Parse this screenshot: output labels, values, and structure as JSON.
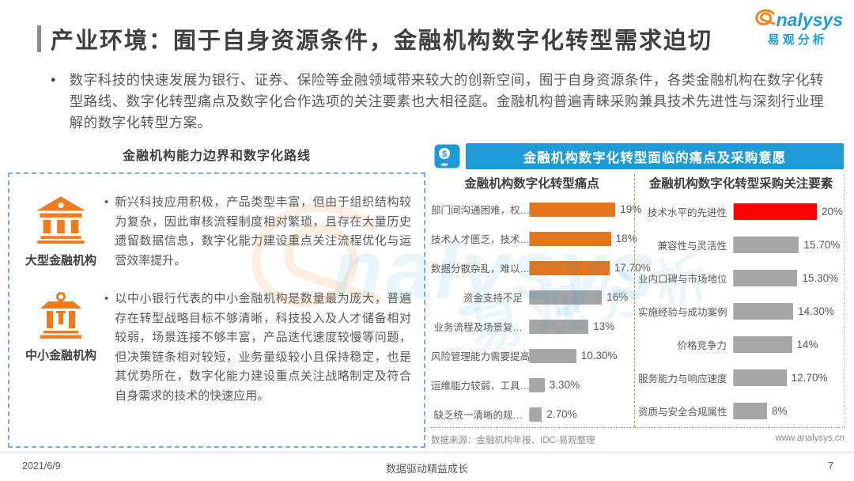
{
  "page": {
    "title": "产业环境：囿于自身资源条件，金融机构数字化转型需求迫切"
  },
  "logo": {
    "en": "nalysys",
    "cn": "易观分析"
  },
  "intro": {
    "marker": "●",
    "text": "数字科技的快速发展为银行、证券、保险等金融领域带来较大的创新空间，囿于自身资源条件，各类金融机构在数字化转型路线、数字化转型痛点及数字化合作选项的关注要素也大相径庭。金融机构普遍青睐采购兼具技术先进性与深刻行业理解的数字化转型方案。"
  },
  "left_panel": {
    "title": "金融机构能力边界和数字化路线",
    "items": [
      {
        "icon": "bank-large-icon",
        "label": "大型金融机构",
        "bullet": "•",
        "text": "新兴科技应用积极，产品类型丰富，但由于组织结构较为复杂，因此审核流程制度相对繁琐，且存在大量历史遗留数据信息，数字化能力建设重点关注流程优化与运营效率提升。"
      },
      {
        "icon": "bank-small-icon",
        "label": "中小金融机构",
        "bullet": "•",
        "text": "以中小银行代表的中小金融机构是数量最为庞大，普遍存在转型战略目标不够清晰，科技投入及人才储备相对较弱，场景连接不够丰富，产品迭代速度较慢等问题，但决策链条相对较短，业务量级较小且保持稳定，也是其优势所在，数字化能力建设重点关注战略制定及符合自身需求的技术的快速应用。"
      }
    ]
  },
  "right_panel": {
    "banner": "金融机构数字化转型面临的痛点及采购意愿",
    "coin_symbol": "$",
    "source": "数据来源：金融机构年报、IDC·易观整理",
    "website": "www.analysys.cn"
  },
  "chart_data": [
    {
      "type": "bar",
      "orientation": "horizontal",
      "title": "金融机构数字化转型痛点",
      "categories": [
        "部门间沟通困难，权…",
        "技术人才匮乏，技术…",
        "数据分散杂乱，难以…",
        "资金支持不足",
        "业务流程及场景复…",
        "风险管理能力需要提高",
        "运维能力较弱，工具…",
        "缺乏统一清晰的规…"
      ],
      "values": [
        19,
        18,
        17.7,
        16,
        13,
        10.3,
        3.3,
        2.7
      ],
      "value_labels": [
        "19%",
        "18%",
        "17.70%",
        "16%",
        "13%",
        "10.30%",
        "3.30%",
        "2.70%"
      ],
      "bar_colors": [
        "#e2751d",
        "#e2751d",
        "#e2751d",
        "#a6a6a6",
        "#a6a6a6",
        "#a6a6a6",
        "#a6a6a6",
        "#a6a6a6"
      ],
      "xlim": [
        0,
        20
      ],
      "grid": false,
      "legend": "none"
    },
    {
      "type": "bar",
      "orientation": "horizontal",
      "title": "金融机构数字化转型采购关注要素",
      "categories": [
        "技术水平的先进性",
        "兼容性与灵活性",
        "业内口碑与市场地位",
        "实施经验与成功案例",
        "价格竞争力",
        "服务能力与响应速度",
        "资质与安全合规属性"
      ],
      "values": [
        20,
        15.7,
        15.3,
        14.3,
        14,
        12.7,
        8
      ],
      "value_labels": [
        "20%",
        "15.70%",
        "15.30%",
        "14.30%",
        "14%",
        "12.70%",
        "8%"
      ],
      "bar_colors": [
        "#fe0000",
        "#a6a6a6",
        "#a6a6a6",
        "#a6a6a6",
        "#a6a6a6",
        "#a6a6a6",
        "#a6a6a6"
      ],
      "xlim": [
        0,
        20
      ],
      "grid": false,
      "legend": "none"
    }
  ],
  "footer": {
    "date": "2021/6/9",
    "center": "数据驱动精益成长",
    "page": "7"
  },
  "watermark": {
    "en": "nalysys",
    "cn": "易观分析"
  },
  "colors": {
    "accent_blue": "#1e9bd7",
    "pain_orange": "#e2751d",
    "highlight_red": "#fe0000",
    "neutral_gray": "#a6a6a6",
    "dashed_border_blue": "#7bafd4",
    "dashed_border_orange": "#ee8b3e",
    "icon_orange": "#ee7b1e"
  }
}
